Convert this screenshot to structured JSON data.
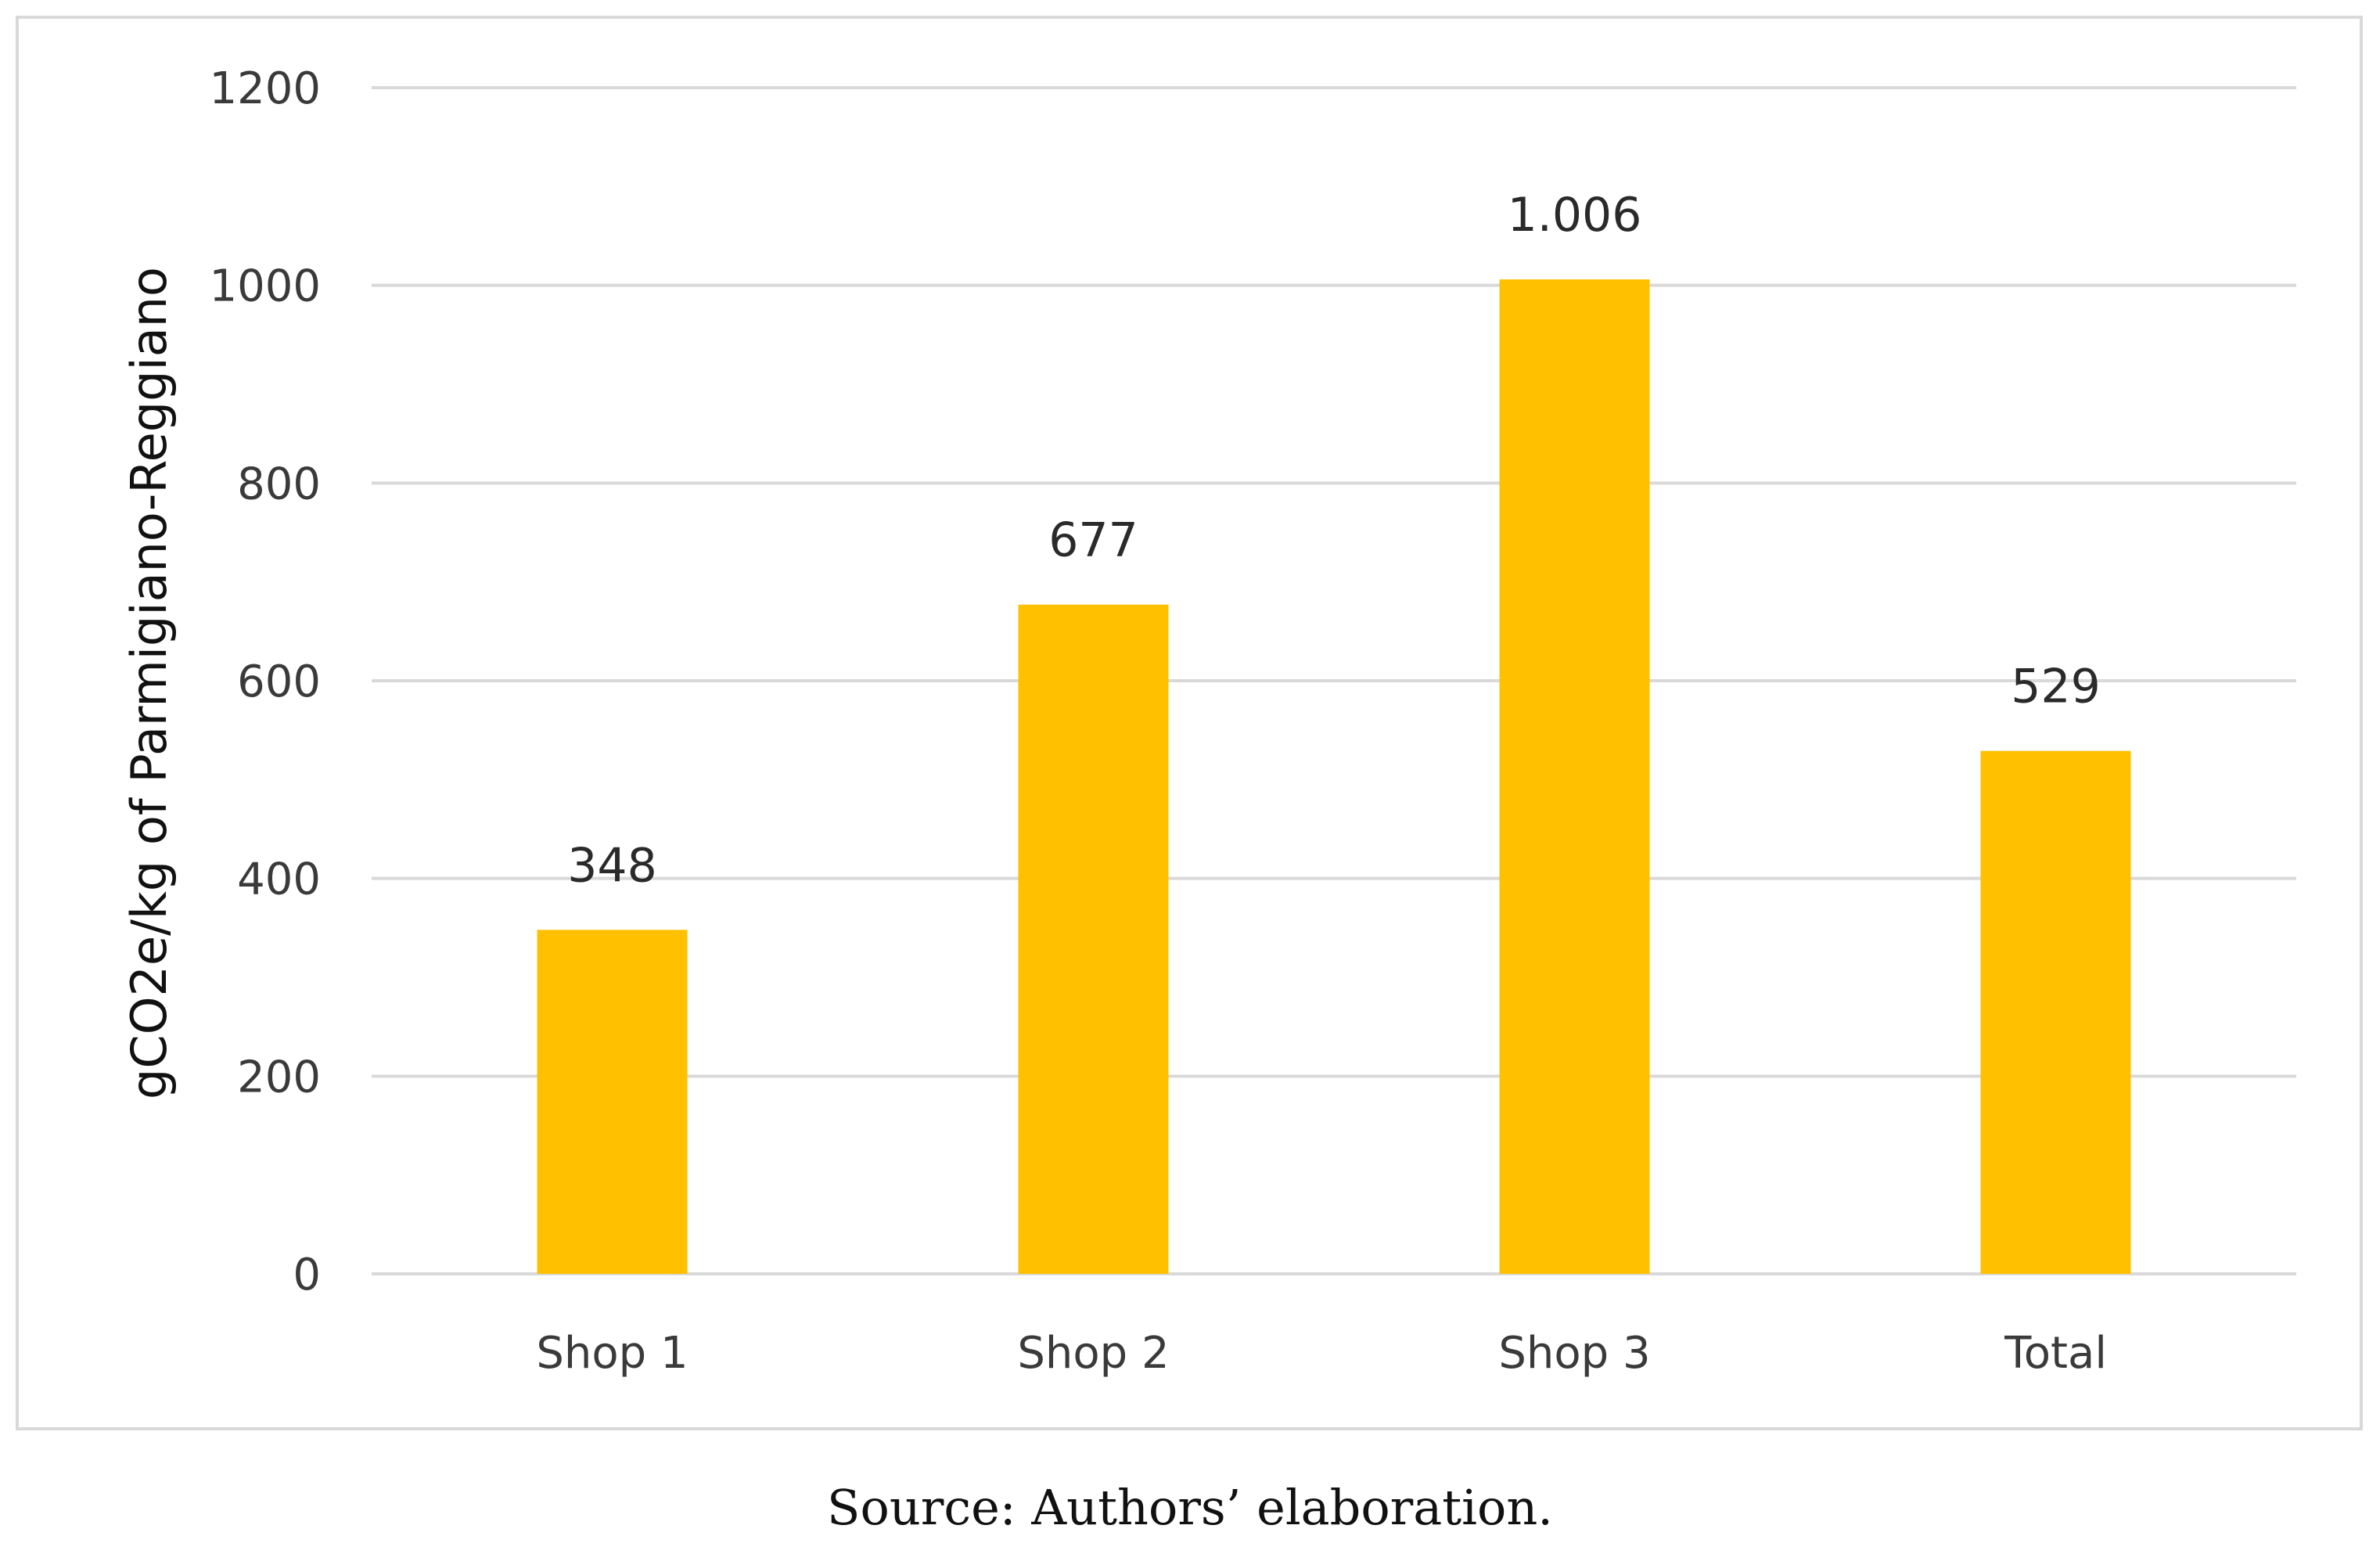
{
  "chart_data": {
    "type": "bar",
    "categories": [
      "Shop 1",
      "Shop 2",
      "Shop 3",
      "Total"
    ],
    "values": [
      348,
      677,
      1006,
      529
    ],
    "data_labels": [
      "348",
      "677",
      "1.006",
      "529"
    ],
    "ylabel": "gCO2e/kg of Parmigiano-Reggiano",
    "xlabel": "",
    "ylim": [
      0,
      1200
    ],
    "yticks": [
      0,
      200,
      400,
      600,
      800,
      1000,
      1200
    ],
    "grid": true,
    "legend": "none",
    "bar_color": "#FFC000",
    "grid_color": "#d9d9d9"
  },
  "source_note": "Source: Authors’ elaboration."
}
